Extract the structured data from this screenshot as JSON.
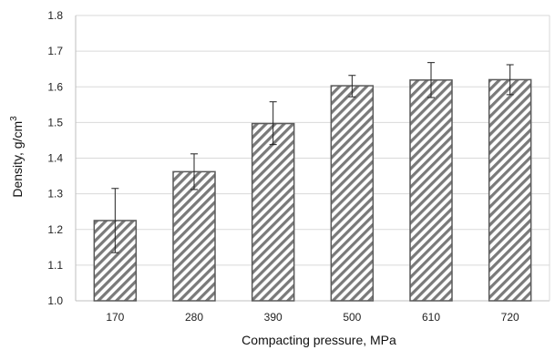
{
  "chart_data": {
    "type": "bar",
    "categories": [
      "170",
      "280",
      "390",
      "500",
      "610",
      "720"
    ],
    "values": [
      1.225,
      1.362,
      1.497,
      1.603,
      1.619,
      1.62
    ],
    "error_low": [
      1.135,
      1.312,
      1.438,
      1.572,
      1.57,
      1.578
    ],
    "error_high": [
      1.315,
      1.412,
      1.558,
      1.632,
      1.668,
      1.662
    ],
    "xlabel": "Compacting pressure, MPa",
    "ylabel": "Density, g/cm",
    "ylabel_superscript": "3",
    "ylim": [
      1.0,
      1.8
    ],
    "yticks": [
      "1.0",
      "1.1",
      "1.2",
      "1.3",
      "1.4",
      "1.5",
      "1.6",
      "1.7",
      "1.8"
    ],
    "grid": true,
    "bar_pattern": "diagonal-hatch",
    "colors": {
      "hatch": "#7a7a7a",
      "bar_outline": "#5a5a5a",
      "grid": "#d9d9d9",
      "axis": "#bfbfbf",
      "error_bar": "#222222"
    }
  }
}
